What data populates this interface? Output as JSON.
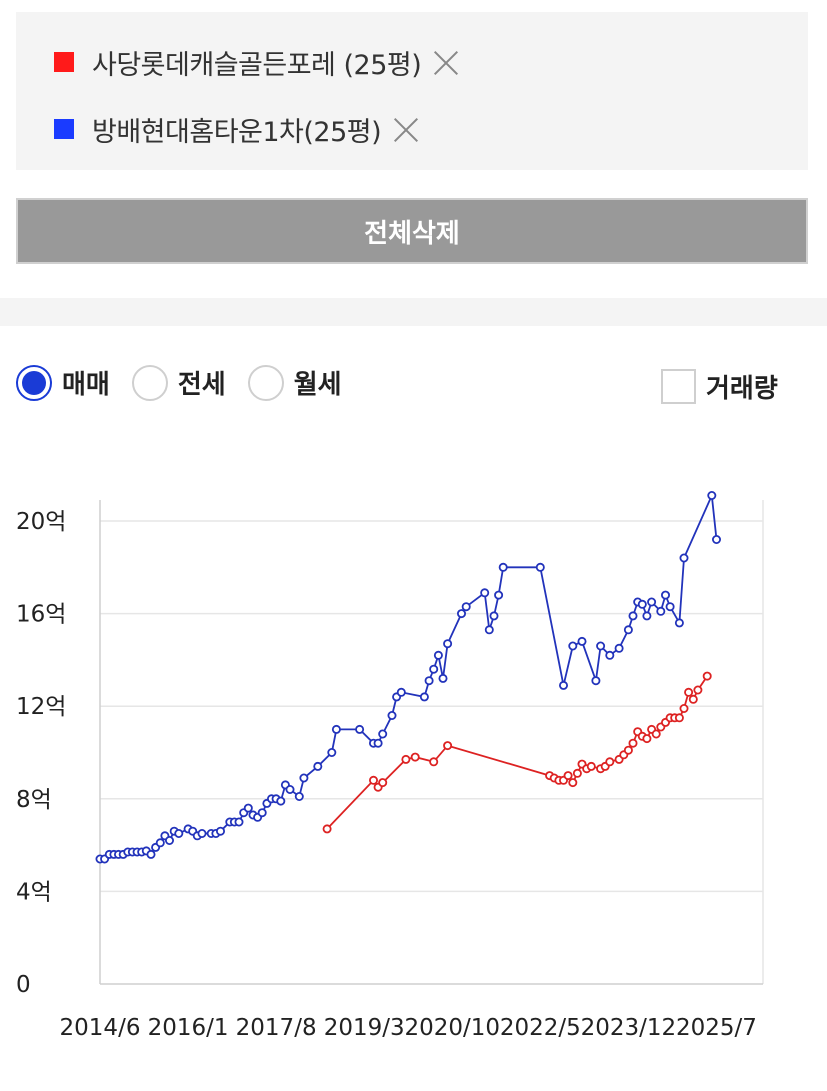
{
  "compare_list": {
    "items": [
      {
        "label": "사당롯데캐슬골든포레 (25평)",
        "color": "#ff1a1a"
      },
      {
        "label": "방배현대홈타운1차(25평)",
        "color": "#1a3bff"
      }
    ],
    "remove_icon": "close-icon"
  },
  "clear_all_label": "전체삭제",
  "deal_type": {
    "options": [
      "매매",
      "전세",
      "월세"
    ],
    "selected": "매매"
  },
  "volume_toggle": {
    "label": "거래량",
    "checked": false
  },
  "chart_data": {
    "type": "line",
    "x_type": "date",
    "xlim": [
      "2014-06",
      "2026-03"
    ],
    "ylim": [
      0,
      21
    ],
    "y_ticks": [
      {
        "value": 0,
        "label": "0"
      },
      {
        "value": 4,
        "label": "4억"
      },
      {
        "value": 8,
        "label": "8억"
      },
      {
        "value": 12,
        "label": "12억"
      },
      {
        "value": 16,
        "label": "16억"
      },
      {
        "value": 20,
        "label": "20억"
      }
    ],
    "x_ticks": [
      "2014/6",
      "2016/1",
      "2017/8",
      "2019/3",
      "2020/10",
      "2022/5",
      "2023/12",
      "2025/7"
    ],
    "grid": true,
    "series": [
      {
        "name": "방배현대홈타운1차(25평)",
        "color": "#2233bb",
        "points": [
          [
            "2014-06",
            5.4
          ],
          [
            "2014-07",
            5.4
          ],
          [
            "2014-08",
            5.6
          ],
          [
            "2014-09",
            5.6
          ],
          [
            "2014-10",
            5.6
          ],
          [
            "2014-11",
            5.6
          ],
          [
            "2014-12",
            5.7
          ],
          [
            "2015-01",
            5.7
          ],
          [
            "2015-02",
            5.7
          ],
          [
            "2015-03",
            5.7
          ],
          [
            "2015-04",
            5.75
          ],
          [
            "2015-05",
            5.6
          ],
          [
            "2015-06",
            5.9
          ],
          [
            "2015-07",
            6.1
          ],
          [
            "2015-08",
            6.4
          ],
          [
            "2015-09",
            6.2
          ],
          [
            "2015-10",
            6.6
          ],
          [
            "2015-11",
            6.5
          ],
          [
            "2016-01",
            6.7
          ],
          [
            "2016-02",
            6.6
          ],
          [
            "2016-03",
            6.4
          ],
          [
            "2016-04",
            6.5
          ],
          [
            "2016-06",
            6.5
          ],
          [
            "2016-07",
            6.5
          ],
          [
            "2016-08",
            6.6
          ],
          [
            "2016-10",
            7.0
          ],
          [
            "2016-11",
            7.0
          ],
          [
            "2016-12",
            7.0
          ],
          [
            "2017-01",
            7.4
          ],
          [
            "2017-02",
            7.6
          ],
          [
            "2017-03",
            7.3
          ],
          [
            "2017-04",
            7.2
          ],
          [
            "2017-05",
            7.4
          ],
          [
            "2017-06",
            7.8
          ],
          [
            "2017-07",
            8.0
          ],
          [
            "2017-08",
            8.0
          ],
          [
            "2017-09",
            7.9
          ],
          [
            "2017-10",
            8.6
          ],
          [
            "2017-11",
            8.4
          ],
          [
            "2018-01",
            8.1
          ],
          [
            "2018-02",
            8.9
          ],
          [
            "2018-05",
            9.4
          ],
          [
            "2018-08",
            10.0
          ],
          [
            "2018-09",
            11.0
          ],
          [
            "2019-02",
            11.0
          ],
          [
            "2019-05",
            10.4
          ],
          [
            "2019-06",
            10.4
          ],
          [
            "2019-07",
            10.8
          ],
          [
            "2019-09",
            11.6
          ],
          [
            "2019-10",
            12.4
          ],
          [
            "2019-11",
            12.6
          ],
          [
            "2020-04",
            12.4
          ],
          [
            "2020-05",
            13.1
          ],
          [
            "2020-06",
            13.6
          ],
          [
            "2020-07",
            14.2
          ],
          [
            "2020-08",
            13.2
          ],
          [
            "2020-09",
            14.7
          ],
          [
            "2020-12",
            16.0
          ],
          [
            "2021-01",
            16.3
          ],
          [
            "2021-05",
            16.9
          ],
          [
            "2021-06",
            15.3
          ],
          [
            "2021-07",
            15.9
          ],
          [
            "2021-08",
            16.8
          ],
          [
            "2021-09",
            18.0
          ],
          [
            "2022-05",
            18.0
          ],
          [
            "2022-10",
            12.9
          ],
          [
            "2022-12",
            14.6
          ],
          [
            "2023-02",
            14.8
          ],
          [
            "2023-05",
            13.1
          ],
          [
            "2023-06",
            14.6
          ],
          [
            "2023-08",
            14.2
          ],
          [
            "2023-10",
            14.5
          ],
          [
            "2023-12",
            15.3
          ],
          [
            "2024-01",
            15.9
          ],
          [
            "2024-02",
            16.5
          ],
          [
            "2024-03",
            16.4
          ],
          [
            "2024-04",
            15.9
          ],
          [
            "2024-05",
            16.5
          ],
          [
            "2024-07",
            16.1
          ],
          [
            "2024-08",
            16.8
          ],
          [
            "2024-09",
            16.3
          ],
          [
            "2024-11",
            15.6
          ],
          [
            "2024-12",
            18.4
          ],
          [
            "2025-06",
            21.1
          ],
          [
            "2025-07",
            19.2
          ]
        ]
      },
      {
        "name": "사당롯데캐슬골든포레 (25평)",
        "color": "#dd2222",
        "points": [
          [
            "2018-07",
            6.7
          ],
          [
            "2019-05",
            8.8
          ],
          [
            "2019-06",
            8.5
          ],
          [
            "2019-07",
            8.7
          ],
          [
            "2019-12",
            9.7
          ],
          [
            "2020-02",
            9.8
          ],
          [
            "2020-06",
            9.6
          ],
          [
            "2020-09",
            10.3
          ],
          [
            "2022-07",
            9.0
          ],
          [
            "2022-08",
            8.9
          ],
          [
            "2022-09",
            8.8
          ],
          [
            "2022-10",
            8.8
          ],
          [
            "2022-11",
            9.0
          ],
          [
            "2022-12",
            8.7
          ],
          [
            "2023-01",
            9.1
          ],
          [
            "2023-02",
            9.5
          ],
          [
            "2023-03",
            9.3
          ],
          [
            "2023-04",
            9.4
          ],
          [
            "2023-06",
            9.3
          ],
          [
            "2023-07",
            9.4
          ],
          [
            "2023-08",
            9.6
          ],
          [
            "2023-10",
            9.7
          ],
          [
            "2023-11",
            9.9
          ],
          [
            "2023-12",
            10.1
          ],
          [
            "2024-01",
            10.4
          ],
          [
            "2024-02",
            10.9
          ],
          [
            "2024-03",
            10.7
          ],
          [
            "2024-04",
            10.6
          ],
          [
            "2024-05",
            11.0
          ],
          [
            "2024-06",
            10.8
          ],
          [
            "2024-07",
            11.1
          ],
          [
            "2024-08",
            11.3
          ],
          [
            "2024-09",
            11.5
          ],
          [
            "2024-10",
            11.5
          ],
          [
            "2024-11",
            11.5
          ],
          [
            "2024-12",
            11.9
          ],
          [
            "2025-01",
            12.6
          ],
          [
            "2025-02",
            12.3
          ],
          [
            "2025-03",
            12.7
          ],
          [
            "2025-05",
            13.3
          ]
        ]
      }
    ]
  }
}
